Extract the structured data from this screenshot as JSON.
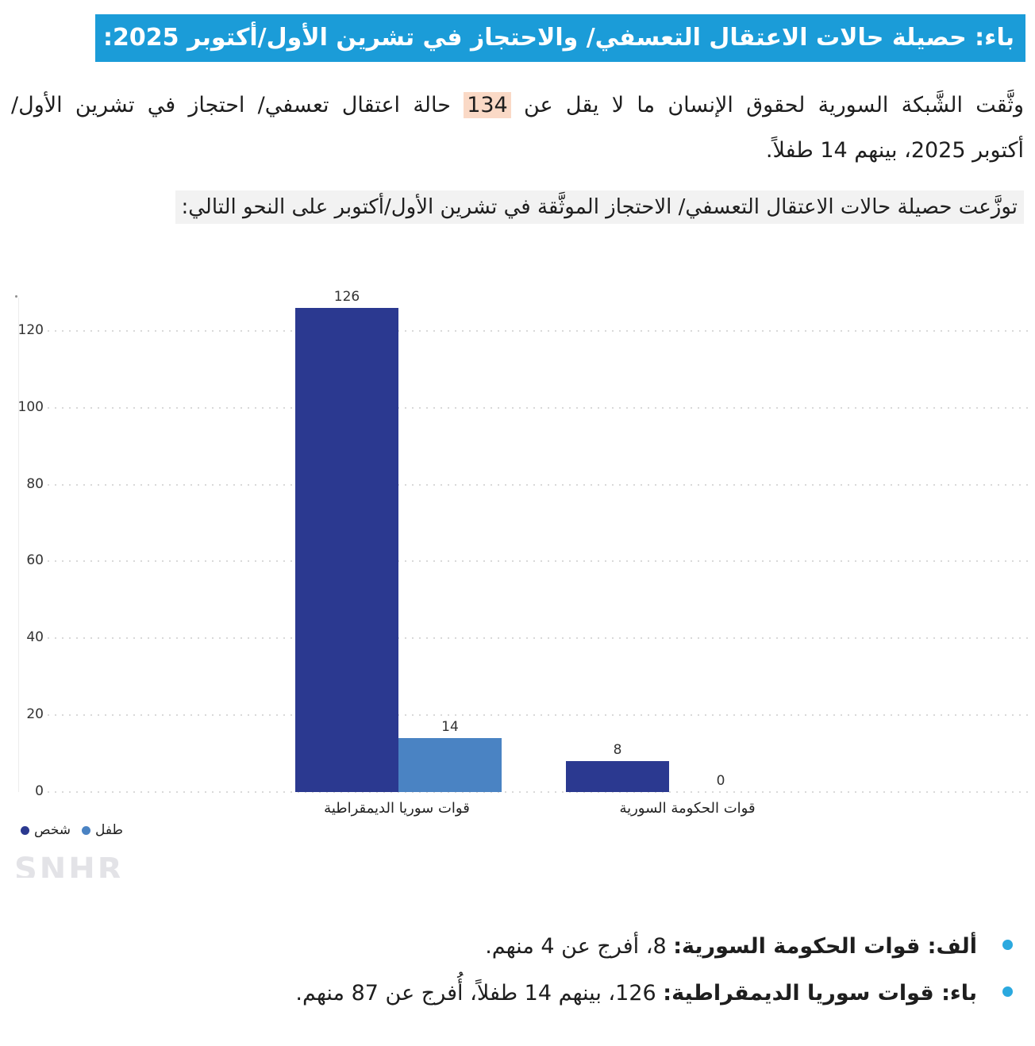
{
  "header": {
    "title": "باء: حصيلة حالات الاعتقال التعسفي/ والاحتجاز في تشرين الأول/أكتوبر 2025:"
  },
  "intro": {
    "line1_pre": "وثَّقت الشَّبكة السورية لحقوق الإنسان ما لا يقل عن ",
    "highlight": "134",
    "line1_post": " حالة اعتقال تعسفي/ احتجاز في تشرين الأول/",
    "line2": "أكتوبر 2025، بينهم 14 طفلاً."
  },
  "subtitle": {
    "text": "توزَّعت حصيلة حالات الاعتقال التعسفي/ الاحتجاز الموثَّقة في تشرين الأول/أكتوبر على النحو التالي:"
  },
  "watermark": {
    "text": "SNHR"
  },
  "bullets": [
    {
      "bold": "ألف: قوات الحكومة السورية:",
      "text": " 8، أفرج عن 4 منهم."
    },
    {
      "bold": "باء: قوات سوريا الديمقراطية:",
      "text": " 126، بينهم 14 طفلاً، أُفرج عن 87 منهم."
    }
  ],
  "colors": {
    "accent_header": "#1b9cd8",
    "bullet_dot": "#2ba9df",
    "series_person": "#2b3990",
    "series_child": "#4a83c3",
    "highlight_bg": "#fad9c6",
    "subtitle_bg": "#f2f2f2",
    "gridline": "#d9d9d9",
    "watermark": "#e3e3e7",
    "text": "#1e1e1e"
  },
  "chart_data": {
    "type": "bar",
    "title": "",
    "categories": [
      "قوات سوريا الديمقراطية",
      "قوات الحكومة السورية"
    ],
    "series": [
      {
        "key": "person",
        "name": "شخص",
        "color": "#2b3990",
        "values": [
          126,
          8
        ]
      },
      {
        "key": "child",
        "name": "طفل",
        "color": "#4a83c3",
        "values": [
          14,
          0
        ]
      }
    ],
    "xlabel": "",
    "ylabel": "",
    "ylim": [
      0,
      130
    ],
    "yticks": [
      0,
      20,
      40,
      60,
      80,
      100,
      120
    ],
    "grid": "horizontal-dotted",
    "legend_position": "bottom-left",
    "data_labels": [
      126,
      14,
      8,
      0
    ]
  }
}
